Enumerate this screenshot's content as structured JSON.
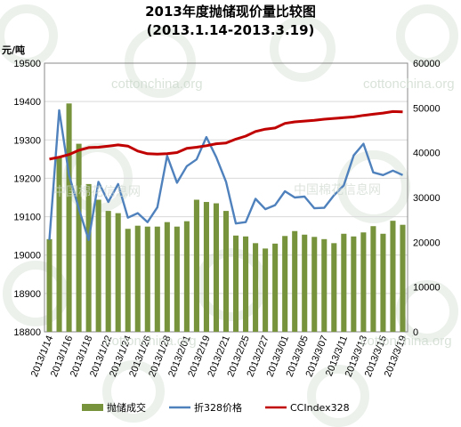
{
  "chart_data": {
    "type": "bar+line",
    "title": "2013年度抛储现价量比较图",
    "subtitle": "(2013.1.14-2013.3.19)",
    "ylabel_left": "元/吨",
    "ylim_left": [
      18800,
      19500
    ],
    "yticks_left": [
      18800,
      18900,
      19000,
      19100,
      19200,
      19300,
      19400,
      19500
    ],
    "ylim_right": [
      0,
      60000
    ],
    "yticks_right": [
      0,
      10000,
      20000,
      30000,
      40000,
      50000,
      60000
    ],
    "x": [
      "2013/1/14",
      "2013/1/15",
      "2013/1/16",
      "2013/1/17",
      "2013/1/18",
      "2013/1/21",
      "2013/1/22",
      "2013/1/23",
      "2013/1/24",
      "2013/1/25",
      "2013/1/26",
      "2013/1/27",
      "2013/1/28",
      "2013/1/29",
      "2013/2/01",
      "2013/2/04",
      "2013/2/19",
      "2013/2/20",
      "2013/2/21",
      "2013/2/22",
      "2013/2/25",
      "2013/2/26",
      "2013/2/27",
      "2013/2/28",
      "2013/3/01",
      "2013/3/04",
      "2013/3/05",
      "2013/3/06",
      "2013/3/07",
      "2013/3/08",
      "2013/3/11",
      "2013/3/12",
      "2013/3/13",
      "2013/3/14",
      "2013/3/15",
      "2013/3/18",
      "2013/3/19"
    ],
    "xtick_labels": [
      "2013/1/14",
      "",
      "2013/1/16",
      "",
      "2013/1/18",
      "",
      "2013/1/22",
      "",
      "2013/1/24",
      "",
      "2013/1/26",
      "",
      "2013/1/28",
      "",
      "2013/2/01",
      "",
      "2013/2/19",
      "",
      "2013/2/21",
      "",
      "2013/2/25",
      "",
      "2013/2/27",
      "",
      "2013/3/01",
      "",
      "2013/3/05",
      "",
      "2013/3/07",
      "",
      "2013/3/11",
      "",
      "2013/3/13",
      "",
      "2013/3/15",
      "",
      "2013/3/19"
    ],
    "series": [
      {
        "name": "抛储成交",
        "type": "bar",
        "axis": "right",
        "color": "#77933c",
        "values": [
          20700,
          39000,
          51000,
          42000,
          33000,
          29500,
          27000,
          26500,
          23000,
          23700,
          23500,
          23500,
          24500,
          23500,
          24700,
          29500,
          29000,
          28700,
          27000,
          21500,
          21300,
          19800,
          18600,
          19700,
          21400,
          22500,
          21700,
          21200,
          20700,
          19800,
          21900,
          21300,
          22200,
          23600,
          21900,
          24800,
          23900
        ]
      },
      {
        "name": "折328价格",
        "type": "line",
        "axis": "right",
        "color": "#4f81bd",
        "values": [
          20500,
          49500,
          35000,
          27500,
          20500,
          33500,
          29000,
          33000,
          25500,
          26500,
          24500,
          27800,
          39300,
          33300,
          37000,
          38500,
          43500,
          39000,
          33500,
          24200,
          24500,
          29700,
          27400,
          28300,
          31400,
          30000,
          30200,
          27600,
          27700,
          30500,
          32700,
          39400,
          42000,
          35600,
          35000,
          36000,
          35000
        ]
      },
      {
        "name": "CCIndex328",
        "type": "line",
        "axis": "left",
        "color": "#c00000",
        "values": [
          19250,
          19255,
          19262,
          19273,
          19280,
          19281,
          19284,
          19287,
          19284,
          19271,
          19264,
          19263,
          19264,
          19267,
          19278,
          19281,
          19285,
          19290,
          19292,
          19302,
          19310,
          19322,
          19328,
          19331,
          19343,
          19347,
          19349,
          19351,
          19354,
          19356,
          19358,
          19360,
          19364,
          19367,
          19370,
          19374,
          19373
        ]
      }
    ],
    "legend": [
      "抛储成交",
      "折328价格",
      "CCIndex328"
    ],
    "legend_position": "bottom",
    "grid": true
  },
  "watermarks": [
    "cottonchina.org",
    "中国棉花信息网"
  ]
}
